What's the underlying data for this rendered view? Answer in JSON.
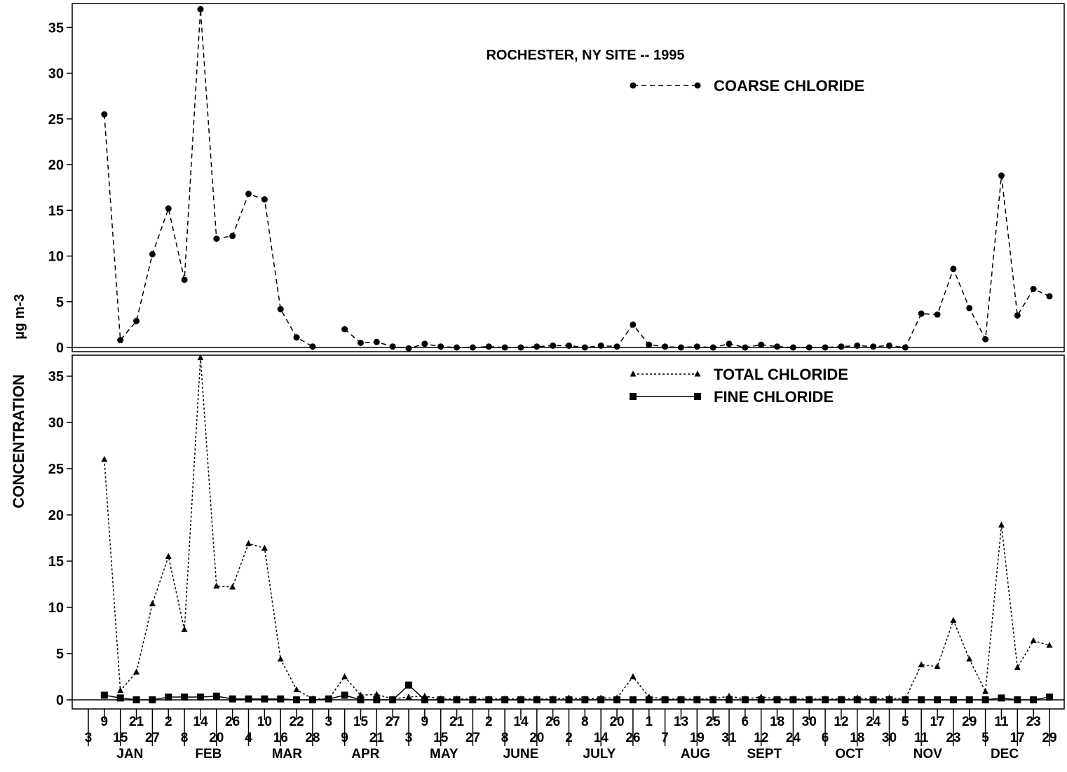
{
  "title": "ROCHESTER, NY SITE -- 1995",
  "ylabel": "CONCENTRATION",
  "yunit": "µg m-3",
  "chart_data": [
    {
      "type": "line",
      "panel": "top",
      "ylim": [
        -0.8,
        37.2
      ],
      "yticks": [
        0,
        5,
        10,
        15,
        20,
        25,
        30,
        35
      ],
      "legend_position": "top-right",
      "series": [
        {
          "name": "COARSE CHLORIDE",
          "marker": "circle",
          "line": "dashed",
          "values": [
            25.5,
            0.8,
            2.9,
            10.2,
            15.2,
            7.4,
            37.0,
            11.9,
            12.2,
            16.8,
            16.2,
            4.2,
            1.1,
            0.1,
            null,
            2.0,
            0.5,
            0.6,
            0.1,
            -0.1,
            0.4,
            0.1,
            0.0,
            0.0,
            0.1,
            0.0,
            0.0,
            0.1,
            0.2,
            0.2,
            0.0,
            0.2,
            0.1,
            2.5,
            0.3,
            0.1,
            0.0,
            0.1,
            0.0,
            0.4,
            0.0,
            0.3,
            0.1,
            0.0,
            0.0,
            0.0,
            0.1,
            0.2,
            0.1,
            0.2,
            0.0,
            3.7,
            3.6,
            8.6,
            4.3,
            0.9,
            18.8,
            3.5,
            6.4,
            5.6
          ]
        }
      ]
    },
    {
      "type": "line",
      "panel": "bottom",
      "ylim": [
        -0.8,
        37.2
      ],
      "yticks": [
        0,
        5,
        10,
        15,
        20,
        25,
        30,
        35
      ],
      "legend_position": "top-right",
      "series": [
        {
          "name": "TOTAL CHLORIDE",
          "marker": "triangle",
          "line": "dotted",
          "values": [
            26.0,
            1.0,
            3.0,
            10.4,
            15.5,
            7.6,
            37.0,
            12.3,
            12.2,
            16.9,
            16.4,
            4.4,
            1.1,
            0.1,
            0.1,
            2.5,
            0.5,
            0.6,
            0.1,
            0.3,
            0.4,
            0.1,
            0.1,
            0.1,
            0.1,
            0.1,
            0.1,
            0.1,
            0.1,
            0.2,
            0.1,
            0.2,
            0.2,
            2.5,
            0.3,
            0.1,
            0.1,
            0.1,
            0.1,
            0.4,
            0.1,
            0.3,
            0.1,
            0.1,
            0.1,
            0.1,
            0.1,
            0.2,
            0.1,
            0.2,
            0.1,
            3.8,
            3.6,
            8.6,
            4.4,
            0.9,
            18.9,
            3.5,
            6.4,
            5.9
          ]
        },
        {
          "name": "FINE CHLORIDE",
          "marker": "square",
          "line": "solid",
          "values": [
            0.5,
            0.2,
            0.0,
            0.0,
            0.3,
            0.3,
            0.3,
            0.4,
            0.1,
            0.1,
            0.1,
            0.1,
            0.0,
            0.0,
            0.1,
            0.5,
            0.0,
            0.0,
            0.0,
            1.6,
            0.0,
            0.0,
            0.0,
            0.0,
            0.0,
            0.0,
            0.0,
            0.0,
            0.0,
            0.0,
            0.0,
            0.0,
            0.0,
            0.0,
            0.0,
            0.0,
            0.0,
            0.0,
            0.0,
            0.0,
            0.0,
            0.0,
            0.0,
            0.0,
            0.0,
            0.0,
            0.0,
            0.0,
            0.0,
            0.0,
            0.0,
            0.0,
            0.0,
            0.0,
            0.0,
            0.0,
            0.2,
            0.0,
            0.0,
            0.3
          ]
        }
      ]
    }
  ],
  "x_axis": {
    "sample_count": 60,
    "ticks": [
      {
        "label": "3",
        "row": 2
      },
      {
        "label": "9",
        "row": 1
      },
      {
        "label": "15",
        "row": 2
      },
      {
        "label": "21",
        "row": 1
      },
      {
        "label": "27",
        "row": 2
      },
      {
        "label": "2",
        "row": 1
      },
      {
        "label": "8",
        "row": 2
      },
      {
        "label": "14",
        "row": 1
      },
      {
        "label": "20",
        "row": 2
      },
      {
        "label": "26",
        "row": 1
      },
      {
        "label": "4",
        "row": 2
      },
      {
        "label": "10",
        "row": 1
      },
      {
        "label": "16",
        "row": 2
      },
      {
        "label": "22",
        "row": 1
      },
      {
        "label": "28",
        "row": 2
      },
      {
        "label": "3",
        "row": 1
      },
      {
        "label": "9",
        "row": 2
      },
      {
        "label": "15",
        "row": 1
      },
      {
        "label": "21",
        "row": 2
      },
      {
        "label": "27",
        "row": 1
      },
      {
        "label": "3",
        "row": 2
      },
      {
        "label": "9",
        "row": 1
      },
      {
        "label": "15",
        "row": 2
      },
      {
        "label": "21",
        "row": 1
      },
      {
        "label": "27",
        "row": 2
      },
      {
        "label": "2",
        "row": 1
      },
      {
        "label": "8",
        "row": 2
      },
      {
        "label": "14",
        "row": 1
      },
      {
        "label": "20",
        "row": 2
      },
      {
        "label": "26",
        "row": 1
      },
      {
        "label": "2",
        "row": 2
      },
      {
        "label": "8",
        "row": 1
      },
      {
        "label": "14",
        "row": 2
      },
      {
        "label": "20",
        "row": 1
      },
      {
        "label": "26",
        "row": 2
      },
      {
        "label": "1",
        "row": 1
      },
      {
        "label": "7",
        "row": 2
      },
      {
        "label": "13",
        "row": 1
      },
      {
        "label": "19",
        "row": 2
      },
      {
        "label": "25",
        "row": 1
      },
      {
        "label": "31",
        "row": 2
      },
      {
        "label": "6",
        "row": 1
      },
      {
        "label": "12",
        "row": 2
      },
      {
        "label": "18",
        "row": 1
      },
      {
        "label": "24",
        "row": 2
      },
      {
        "label": "30",
        "row": 1
      },
      {
        "label": "6",
        "row": 2
      },
      {
        "label": "12",
        "row": 1
      },
      {
        "label": "18",
        "row": 2
      },
      {
        "label": "24",
        "row": 1
      },
      {
        "label": "30",
        "row": 2
      },
      {
        "label": "5",
        "row": 1
      },
      {
        "label": "11",
        "row": 2
      },
      {
        "label": "17",
        "row": 1
      },
      {
        "label": "23",
        "row": 2
      },
      {
        "label": "29",
        "row": 1
      },
      {
        "label": "5",
        "row": 2
      },
      {
        "label": "11",
        "row": 1
      },
      {
        "label": "17",
        "row": 2
      },
      {
        "label": "23",
        "row": 1
      },
      {
        "label": "29",
        "row": 2
      }
    ],
    "months": [
      {
        "label": "JAN",
        "pos": 2.6
      },
      {
        "label": "FEB",
        "pos": 7.5
      },
      {
        "label": "MAR",
        "pos": 12.4
      },
      {
        "label": "APR",
        "pos": 17.3
      },
      {
        "label": "MAY",
        "pos": 22.2
      },
      {
        "label": "JUNE",
        "pos": 27.0
      },
      {
        "label": "JULY",
        "pos": 31.9
      },
      {
        "label": "AUG",
        "pos": 37.9
      },
      {
        "label": "SEPT",
        "pos": 42.2
      },
      {
        "label": "OCT",
        "pos": 47.5
      },
      {
        "label": "NOV",
        "pos": 52.4
      },
      {
        "label": "DEC",
        "pos": 57.2
      }
    ]
  }
}
